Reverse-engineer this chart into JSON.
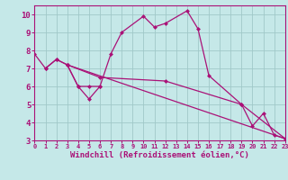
{
  "background_color": "#c5e8e8",
  "grid_color": "#a0c8c8",
  "line_color": "#aa1177",
  "marker_size": 2.5,
  "linewidth": 0.9,
  "xlim": [
    0,
    23
  ],
  "ylim": [
    3,
    10.5
  ],
  "yticks": [
    3,
    4,
    5,
    6,
    7,
    8,
    9,
    10
  ],
  "xticks": [
    0,
    1,
    2,
    3,
    4,
    5,
    6,
    7,
    8,
    9,
    10,
    11,
    12,
    13,
    14,
    15,
    16,
    17,
    18,
    19,
    20,
    21,
    22,
    23
  ],
  "xlabel": "Windchill (Refroidissement éolien,°C)",
  "lines": [
    {
      "x": [
        0,
        1,
        2,
        3,
        4,
        5,
        6,
        7,
        8,
        10,
        11,
        12,
        14,
        15,
        16,
        19,
        20,
        21,
        22,
        23
      ],
      "y": [
        7.8,
        7.0,
        7.5,
        7.2,
        6.0,
        5.3,
        6.0,
        7.8,
        9.0,
        9.9,
        9.3,
        9.5,
        10.2,
        9.2,
        6.6,
        5.0,
        3.8,
        4.5,
        3.3,
        3.1
      ]
    },
    {
      "x": [
        1,
        2,
        3,
        4,
        5,
        6
      ],
      "y": [
        7.0,
        7.5,
        7.2,
        6.0,
        6.0,
        6.0
      ]
    },
    {
      "x": [
        3,
        6,
        12,
        19,
        23
      ],
      "y": [
        7.2,
        6.5,
        6.3,
        5.0,
        3.1
      ]
    },
    {
      "x": [
        3,
        23
      ],
      "y": [
        7.2,
        3.1
      ]
    }
  ]
}
